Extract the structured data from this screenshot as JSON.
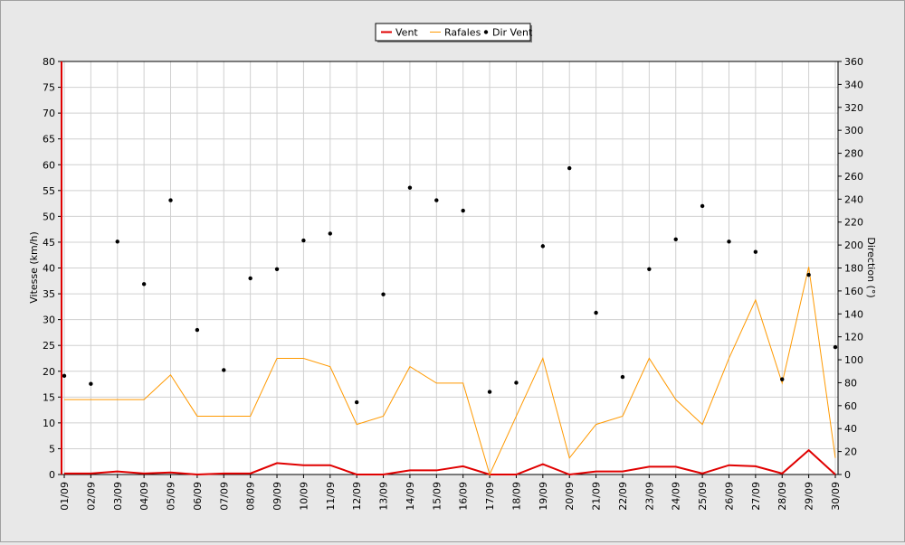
{
  "chart_data": {
    "type": "line",
    "categories": [
      "01/09",
      "02/09",
      "03/09",
      "04/09",
      "05/09",
      "06/09",
      "07/09",
      "08/09",
      "09/09",
      "10/09",
      "11/09",
      "12/09",
      "13/09",
      "14/09",
      "15/09",
      "16/09",
      "17/09",
      "18/09",
      "19/09",
      "20/09",
      "21/09",
      "22/09",
      "23/09",
      "24/09",
      "25/09",
      "26/09",
      "27/09",
      "28/09",
      "29/09",
      "30/09"
    ],
    "ylabel_left": "Vitesse (km/h)",
    "ylabel_right": "Direction (°)",
    "ylim_left": [
      0,
      80
    ],
    "yticks_left": [
      0,
      5,
      10,
      15,
      20,
      25,
      30,
      35,
      40,
      45,
      50,
      55,
      60,
      65,
      70,
      75,
      80
    ],
    "ylim_right": [
      0,
      360
    ],
    "yticks_right": [
      0,
      20,
      40,
      60,
      80,
      100,
      120,
      140,
      160,
      180,
      200,
      220,
      240,
      260,
      280,
      300,
      320,
      340,
      360
    ],
    "grid": true,
    "legend_position": "top-center",
    "series": [
      {
        "name": "Vent",
        "kind": "line",
        "axis": "left",
        "color": "#e00000",
        "values": [
          0.2,
          0.2,
          0.6,
          0.2,
          0.4,
          0,
          0.2,
          0.2,
          2.2,
          1.8,
          1.8,
          0,
          0,
          0.8,
          0.8,
          1.6,
          0,
          0,
          2.0,
          0,
          0.6,
          0.6,
          1.5,
          1.5,
          0.2,
          1.8,
          1.6,
          0.2,
          4.7,
          0
        ]
      },
      {
        "name": "Rafales",
        "kind": "line",
        "axis": "left",
        "color": "#ff9900",
        "values": [
          14.5,
          14.5,
          14.5,
          14.5,
          19.3,
          11.3,
          11.3,
          11.3,
          22.5,
          22.5,
          20.9,
          9.7,
          11.3,
          20.9,
          17.7,
          17.7,
          0,
          11.3,
          22.5,
          3.2,
          9.7,
          11.3,
          22.5,
          14.5,
          9.7,
          22.5,
          33.8,
          17.7,
          40.2,
          3.2
        ]
      },
      {
        "name": "Dir Vent",
        "kind": "scatter",
        "axis": "right",
        "color": "#000000",
        "values": [
          86,
          79,
          203,
          166,
          239,
          126,
          91,
          171,
          179,
          204,
          210,
          63,
          157,
          250,
          239,
          230,
          72,
          80,
          199,
          267,
          141,
          85,
          179,
          205,
          234,
          203,
          194,
          83,
          174,
          111
        ]
      }
    ]
  }
}
